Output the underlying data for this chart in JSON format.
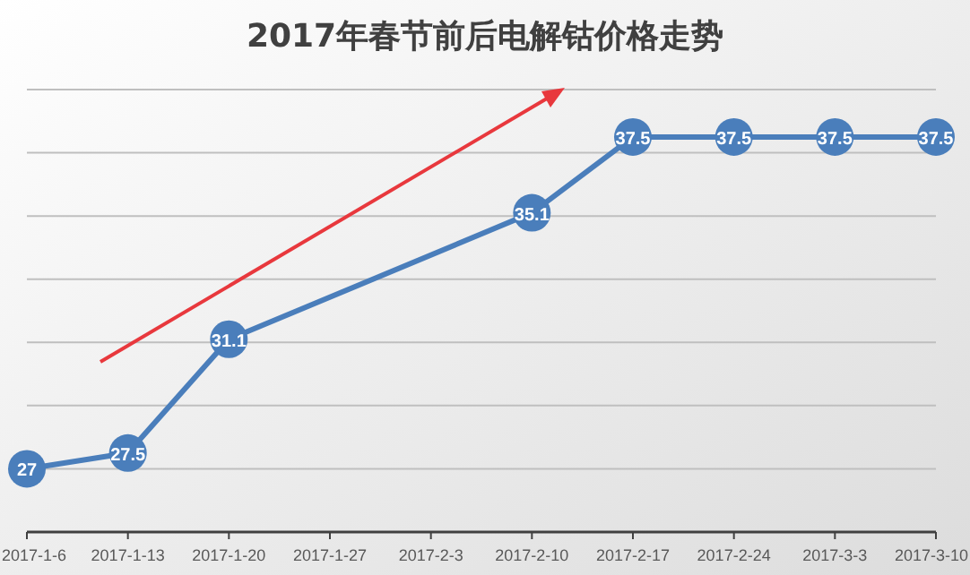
{
  "chart_data": {
    "type": "line",
    "title": "2017年春节前后电解钴价格走势",
    "x": [
      "2017-01-06",
      "2017-01-13",
      "2017-01-20",
      "2017-02-10",
      "2017-02-17",
      "2017-02-24",
      "2017-03-03",
      "2017-03-10"
    ],
    "series": [
      {
        "color": "#4a7ebb",
        "values": [
          27,
          27.5,
          31.1,
          35.1,
          37.5,
          37.5,
          37.5,
          37.5
        ]
      }
    ],
    "xlim": [
      "2017-01-06",
      "2017-03-10"
    ],
    "xticks": [
      {
        "value": "2017-01-06",
        "label": "2017-1-6"
      },
      {
        "value": "2017-01-13",
        "label": "2017-1-13"
      },
      {
        "value": "2017-01-20",
        "label": "2017-1-20"
      },
      {
        "value": "2017-01-27",
        "label": "2017-1-27"
      },
      {
        "value": "2017-02-03",
        "label": "2017-2-3"
      },
      {
        "value": "2017-02-10",
        "label": "2017-2-10"
      },
      {
        "value": "2017-02-17",
        "label": "2017-2-17"
      },
      {
        "value": "2017-02-24",
        "label": "2017-2-24"
      },
      {
        "value": "2017-03-03",
        "label": "2017-3-3"
      },
      {
        "value": "2017-03-10",
        "label": "2017-3-10"
      }
    ],
    "ylim": [
      25,
      39
    ],
    "yticks": [
      {
        "value": 25,
        "label": null
      },
      {
        "value": 27,
        "label": null
      },
      {
        "value": 29,
        "label": null
      },
      {
        "value": 31,
        "label": null
      },
      {
        "value": 33,
        "label": null
      },
      {
        "value": 35,
        "label": null
      },
      {
        "value": 37,
        "label": null
      },
      {
        "value": 39,
        "label": null
      }
    ],
    "grid": "y",
    "marker": "circle",
    "line_style": "solid",
    "data_labels": true,
    "tick_labels": "x"
  }
}
